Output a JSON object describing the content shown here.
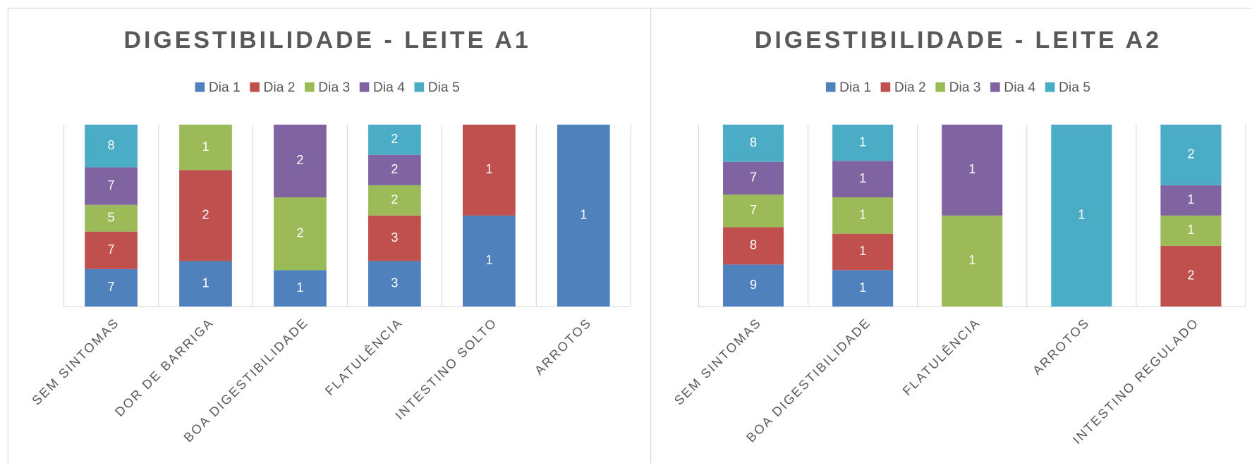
{
  "chart_data": [
    {
      "type": "bar",
      "stacked": "percent",
      "title": "DIGESTIBILIDADE  - LEITE A1",
      "categories": [
        "SEM SINTOMAS",
        "DOR DE BARRIGA",
        "BOA DIGESTIBILIDADE",
        "FLATULÊNCIA",
        "INTESTINO SOLTO",
        "ARROTOS"
      ],
      "series": [
        {
          "name": "Dia 1",
          "color": "#4f81bd",
          "values": [
            7,
            1,
            1,
            3,
            1,
            1
          ]
        },
        {
          "name": "Dia 2",
          "color": "#c0504d",
          "values": [
            7,
            2,
            null,
            3,
            1,
            null
          ]
        },
        {
          "name": "Dia 3",
          "color": "#9bbb59",
          "values": [
            5,
            1,
            2,
            2,
            null,
            null
          ]
        },
        {
          "name": "Dia 4",
          "color": "#8064a2",
          "values": [
            7,
            null,
            2,
            2,
            null,
            null
          ]
        },
        {
          "name": "Dia 5",
          "color": "#4bacc6",
          "values": [
            8,
            null,
            null,
            2,
            null,
            null
          ]
        }
      ],
      "legend": "top"
    },
    {
      "type": "bar",
      "stacked": "percent",
      "title": "DIGESTIBILIDADE - LEITE A2",
      "categories": [
        "SEM SINTOMAS",
        "BOA DIGESTIBILIDADE",
        "FLATULÊNCIA",
        "ARROTOS",
        "INTESTINO REGULADO"
      ],
      "series": [
        {
          "name": "Dia 1",
          "color": "#4f81bd",
          "values": [
            9,
            1,
            null,
            null,
            null
          ]
        },
        {
          "name": "Dia 2",
          "color": "#c0504d",
          "values": [
            8,
            1,
            null,
            null,
            2
          ]
        },
        {
          "name": "Dia 3",
          "color": "#9bbb59",
          "values": [
            7,
            1,
            1,
            null,
            1
          ]
        },
        {
          "name": "Dia 4",
          "color": "#8064a2",
          "values": [
            7,
            1,
            1,
            null,
            1
          ]
        },
        {
          "name": "Dia 5",
          "color": "#4bacc6",
          "values": [
            8,
            1,
            null,
            1,
            2
          ]
        }
      ],
      "legend": "top"
    }
  ]
}
